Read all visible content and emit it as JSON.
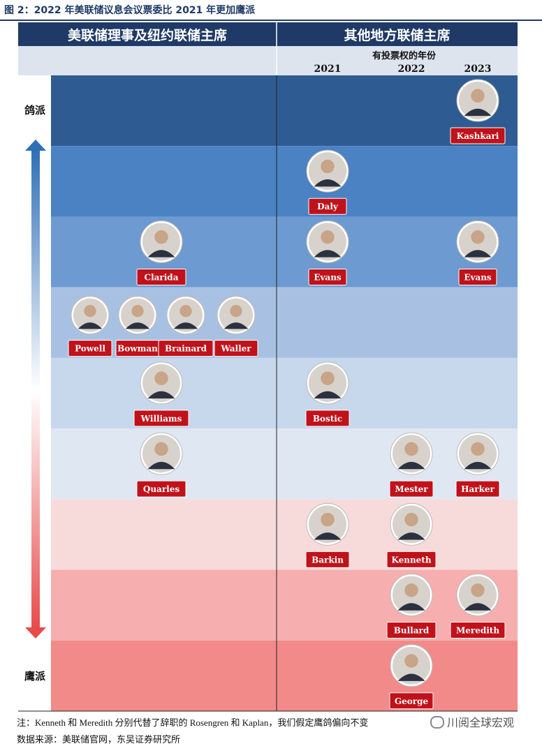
{
  "figure": {
    "title": "图 2：2022 年美联储议息会议票委比 2021 年更加鹰派",
    "note": "注：Kenneth 和 Meredith 分别代替了辞职的 Rosengren 和 Kaplan，我们假定鹰鸽偏向不变",
    "source": "数据来源：美联储官网，东吴证券研究所",
    "watermark": "川阅全球宏观"
  },
  "colors": {
    "header_bg": "#1f3a66",
    "subheader_bg": "#dde4ee",
    "tier_colors": [
      "#2e5c92",
      "#4a82c4",
      "#6d9ad0",
      "#a8c1e3",
      "#c7d7ec",
      "#dfe7f2",
      "#f7dada",
      "#f7aeae",
      "#f28a8a"
    ],
    "label_red": "#c0121a",
    "arrow_blue": "#2f6fb8",
    "arrow_red": "#e84a4a"
  },
  "chart_data": {
    "type": "table",
    "headers": {
      "left": "美联储理事及纽约联储主席",
      "right": "其他地方联储主席",
      "voting_year": "有投票权的年份",
      "years": [
        "2021",
        "2022",
        "2023"
      ]
    },
    "axis": {
      "top_label": "鸽派",
      "bottom_label": "鹰派",
      "tiers": 9
    },
    "members": [
      {
        "name": "Kashkari",
        "group": "regional",
        "year": "2023",
        "tier": 1
      },
      {
        "name": "Daly",
        "group": "regional",
        "year": "2021",
        "tier": 2
      },
      {
        "name": "Clarida",
        "group": "board",
        "tier": 3
      },
      {
        "name": "Evans",
        "group": "regional",
        "year": "2021",
        "tier": 3
      },
      {
        "name": "Evans",
        "group": "regional",
        "year": "2023",
        "tier": 3
      },
      {
        "name": "Powell",
        "group": "board",
        "tier": 4
      },
      {
        "name": "Bowman",
        "group": "board",
        "tier": 4
      },
      {
        "name": "Brainard",
        "group": "board",
        "tier": 4
      },
      {
        "name": "Waller",
        "group": "board",
        "tier": 4
      },
      {
        "name": "Williams",
        "group": "board",
        "tier": 5
      },
      {
        "name": "Bostic",
        "group": "regional",
        "year": "2021",
        "tier": 5
      },
      {
        "name": "Quarles",
        "group": "board",
        "tier": 6
      },
      {
        "name": "Mester",
        "group": "regional",
        "year": "2022",
        "tier": 6
      },
      {
        "name": "Harker",
        "group": "regional",
        "year": "2023",
        "tier": 6
      },
      {
        "name": "Barkin",
        "group": "regional",
        "year": "2021",
        "tier": 7
      },
      {
        "name": "Kenneth",
        "group": "regional",
        "year": "2022",
        "tier": 7
      },
      {
        "name": "Bullard",
        "group": "regional",
        "year": "2022",
        "tier": 8
      },
      {
        "name": "Meredith",
        "group": "regional",
        "year": "2023",
        "tier": 8
      },
      {
        "name": "George",
        "group": "regional",
        "year": "2022",
        "tier": 9
      }
    ]
  }
}
